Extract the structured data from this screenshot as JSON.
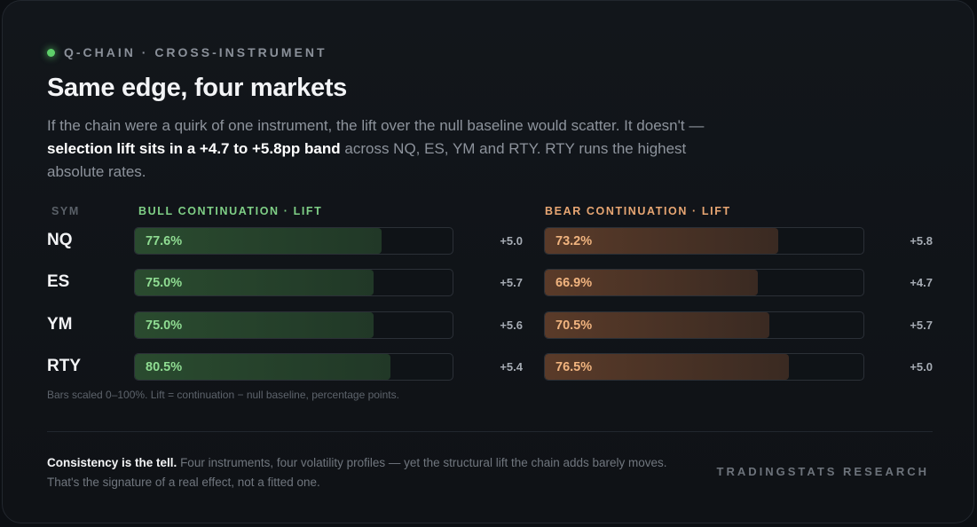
{
  "eyebrow": "Q-CHAIN · CROSS-INSTRUMENT",
  "title": "Same edge, four markets",
  "lede": {
    "before": "If the chain were a quirk of one instrument, the lift over the null baseline would scatter. It doesn't —",
    "highlight": "selection lift sits in a +4.7 to +5.8pp band",
    "after": "across NQ, ES, YM and RTY. RTY runs the highest absolute rates."
  },
  "colors": {
    "bull_accent": "#7fcf86",
    "bear_accent": "#e8a673",
    "status_dot": "#5ecf6a"
  },
  "chart_data": {
    "type": "bar",
    "orientation": "horizontal",
    "categories_header": "SYM",
    "categories": [
      "NQ",
      "ES",
      "YM",
      "RTY"
    ],
    "xlim": [
      0,
      100
    ],
    "series": [
      {
        "name": "BULL CONTINUATION · LIFT",
        "values": [
          77.6,
          75.0,
          75.0,
          80.5
        ],
        "labels": [
          "77.6%",
          "75.0%",
          "75.0%",
          "80.5%"
        ],
        "lift": [
          "+5.0",
          "+5.7",
          "+5.6",
          "+5.4"
        ]
      },
      {
        "name": "BEAR CONTINUATION · LIFT",
        "values": [
          73.2,
          66.9,
          70.5,
          76.5
        ],
        "labels": [
          "73.2%",
          "66.9%",
          "70.5%",
          "76.5%"
        ],
        "lift": [
          "+5.8",
          "+4.7",
          "+5.7",
          "+5.0"
        ]
      }
    ],
    "footnote": "Bars scaled 0–100%. Lift = continuation − null baseline, percentage points."
  },
  "conclusion": {
    "lead": "Consistency is the tell.",
    "body": "Four instruments, four volatility profiles — yet the structural lift the chain adds barely moves. That's the signature of a real effect, not a fitted one."
  },
  "brand": "TRADINGSTATS RESEARCH"
}
